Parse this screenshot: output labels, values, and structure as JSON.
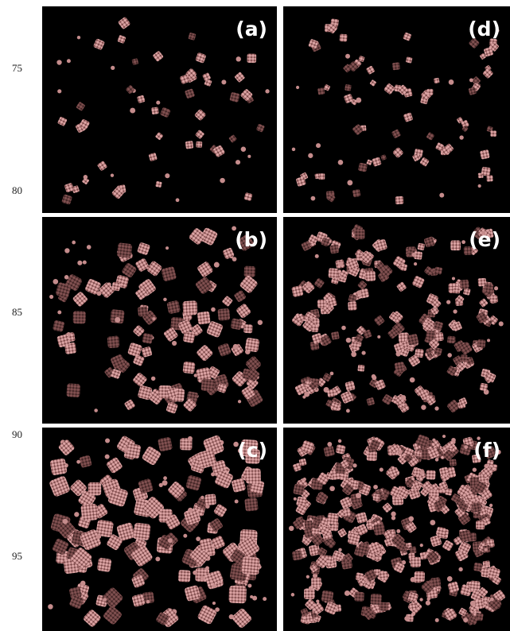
{
  "line_numbers": [
    "75",
    "80",
    "85",
    "90",
    "95"
  ],
  "panels": [
    {
      "label": "(a)"
    },
    {
      "label": "(b)"
    },
    {
      "label": "(c)"
    },
    {
      "label": "(d)"
    },
    {
      "label": "(e)"
    },
    {
      "label": "(f)"
    }
  ]
}
